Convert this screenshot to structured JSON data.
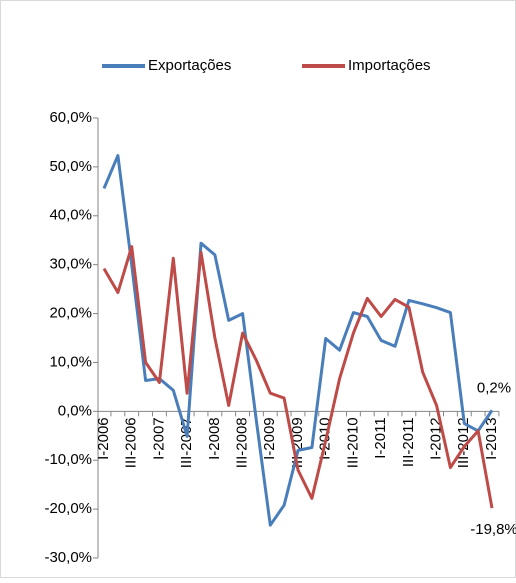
{
  "chart_data": {
    "type": "line",
    "categories": [
      "I-2006",
      null,
      "III-2006",
      null,
      "I-2007",
      null,
      "III-2007",
      null,
      "I-2008",
      null,
      "III-2008",
      null,
      "I-2009",
      null,
      "III-2009",
      null,
      "I-2010",
      null,
      "III-2010",
      null,
      "I-2011",
      null,
      "III-2011",
      null,
      "I-2012",
      null,
      "III-2012",
      null,
      "I-2013"
    ],
    "series": [
      {
        "name": "Exportações",
        "color": "#4a7ebb",
        "values": [
          45.6,
          52.3,
          30,
          6.3,
          6.7,
          4.3,
          -5.1,
          34.4,
          32,
          18.6,
          20,
          -2,
          -23.3,
          -19.2,
          -8,
          -7.4,
          14.9,
          12.5,
          20.2,
          19.4,
          14.5,
          13.3,
          22.7,
          22,
          21.2,
          20.2,
          -2.5,
          -4,
          0.2
        ],
        "value_labels": [
          null,
          null,
          null,
          null,
          null,
          null,
          null,
          null,
          null,
          null,
          null,
          null,
          null,
          null,
          null,
          null,
          null,
          null,
          null,
          null,
          null,
          null,
          null,
          null,
          null,
          null,
          null,
          null,
          "0,2%"
        ]
      },
      {
        "name": "Importações",
        "color": "#be4b48",
        "values": [
          29.2,
          24.3,
          33.7,
          10,
          5.9,
          31.3,
          3.7,
          32.5,
          15,
          1.2,
          16,
          10.4,
          3.7,
          2.7,
          -12,
          -17.8,
          -6,
          6.7,
          16,
          23.1,
          19.4,
          22.9,
          21.3,
          8,
          1.2,
          -11.5,
          -7.2,
          -4,
          -19.8
        ],
        "value_labels": [
          null,
          null,
          null,
          null,
          null,
          null,
          null,
          null,
          null,
          null,
          null,
          null,
          null,
          null,
          null,
          null,
          null,
          null,
          null,
          null,
          null,
          null,
          null,
          null,
          null,
          null,
          null,
          null,
          "-19,8%"
        ]
      }
    ],
    "ylim": [
      -30,
      60
    ],
    "yticks": [
      {
        "value": -30,
        "label": "-30,0%"
      },
      {
        "value": -20,
        "label": "-20,0%"
      },
      {
        "value": -10,
        "label": "-10,0%"
      },
      {
        "value": 0,
        "label": "0,0%"
      },
      {
        "value": 10,
        "label": "10,0%"
      },
      {
        "value": 20,
        "label": "20,0%"
      },
      {
        "value": 30,
        "label": "30,0%"
      },
      {
        "value": 40,
        "label": "40,0%"
      },
      {
        "value": 50,
        "label": "50,0%"
      },
      {
        "value": 60,
        "label": "60,0%"
      }
    ],
    "legend": "top",
    "grid": false
  }
}
